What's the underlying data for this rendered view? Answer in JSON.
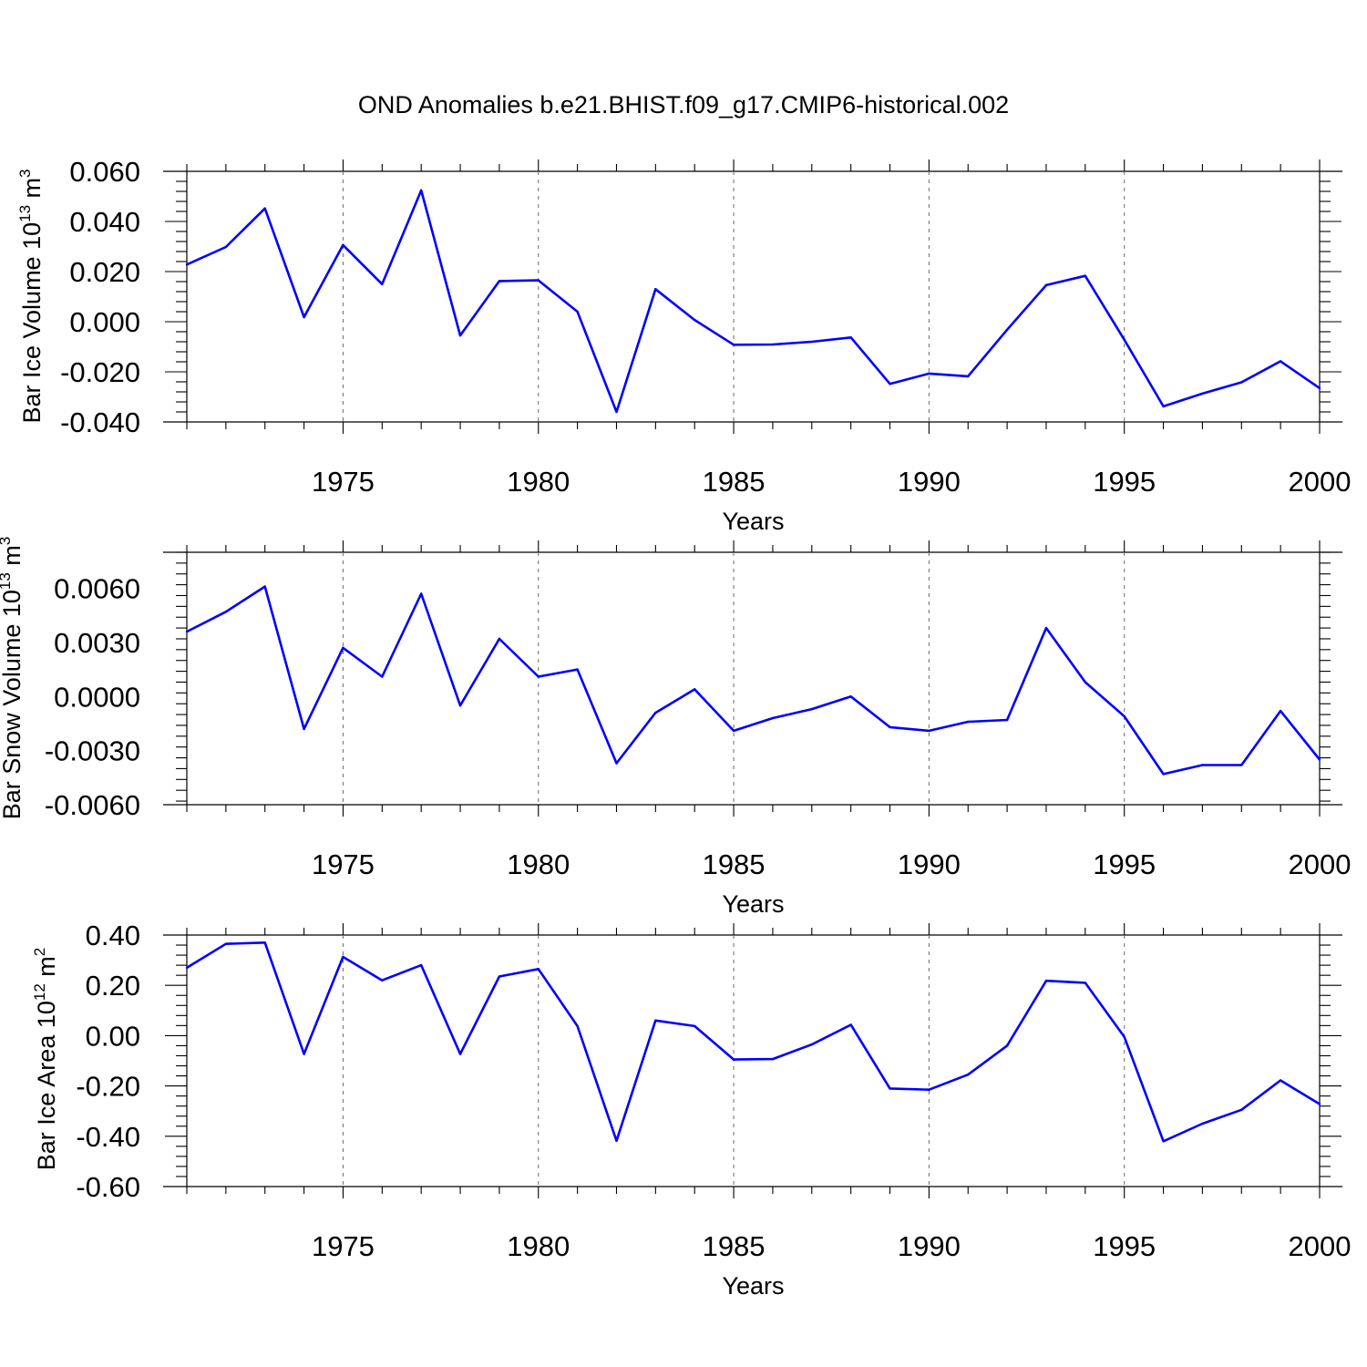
{
  "title": "OND Anomalies b.e21.BHIST.f09_g17.CMIP6-historical.002",
  "colors": {
    "line": "#0000ff",
    "frame": "#000000",
    "grid": "#777777"
  },
  "chart_data": [
    {
      "type": "line",
      "ylabel": "Bar Ice Volume 10",
      "ylabel_exp": "13",
      "ylabel_unit": " m",
      "ylabel_unit_exp": "3",
      "xlabel": "Years",
      "x_ticks": [
        "1975",
        "1980",
        "1985",
        "1990",
        "1995",
        "2000"
      ],
      "y_ticks": [
        "0.060",
        "0.040",
        "0.020",
        "0.000",
        "-0.020",
        "-0.040"
      ],
      "ylim": [
        -0.04,
        0.06
      ],
      "xlim": [
        1971,
        2000
      ],
      "grid": "x-dashed",
      "x": [
        1971,
        1972,
        1973,
        1974,
        1975,
        1976,
        1977,
        1978,
        1979,
        1980,
        1981,
        1982,
        1983,
        1984,
        1985,
        1986,
        1987,
        1988,
        1989,
        1990,
        1991,
        1992,
        1993,
        1994,
        1995,
        1996,
        1997,
        1998,
        1999,
        2000
      ],
      "values": [
        0.0228,
        0.0298,
        0.0452,
        0.0018,
        0.0306,
        0.015,
        0.0524,
        -0.0055,
        0.0162,
        0.0165,
        0.004,
        -0.036,
        0.013,
        0.0007,
        -0.0092,
        -0.0091,
        -0.008,
        -0.0063,
        -0.0248,
        -0.0207,
        -0.0218,
        -0.0032,
        0.0146,
        0.0183,
        -0.0072,
        -0.0338,
        -0.0287,
        -0.0242,
        -0.0158,
        -0.0265
      ]
    },
    {
      "type": "line",
      "ylabel": "Bar Snow Volume 10",
      "ylabel_exp": "13",
      "ylabel_unit": " m",
      "ylabel_unit_exp": "3",
      "xlabel": "Years",
      "x_ticks": [
        "1975",
        "1980",
        "1985",
        "1990",
        "1995",
        "2000"
      ],
      "y_ticks": [
        "0.0060",
        "0.0030",
        "0.0000",
        "-0.0030",
        "-0.0060"
      ],
      "ylim": [
        -0.006,
        0.008
      ],
      "xlim": [
        1971,
        2000
      ],
      "grid": "x-dashed",
      "x": [
        1971,
        1972,
        1973,
        1974,
        1975,
        1976,
        1977,
        1978,
        1979,
        1980,
        1981,
        1982,
        1983,
        1984,
        1985,
        1986,
        1987,
        1988,
        1989,
        1990,
        1991,
        1992,
        1993,
        1994,
        1995,
        1996,
        1997,
        1998,
        1999,
        2000
      ],
      "values": [
        0.0036,
        0.0047,
        0.0061,
        -0.0018,
        0.0027,
        0.0011,
        0.0057,
        -0.0005,
        0.0032,
        0.0011,
        0.0015,
        -0.0037,
        -0.0009,
        0.0004,
        -0.0019,
        -0.0012,
        -0.0007,
        0.0,
        -0.0017,
        -0.0019,
        -0.0014,
        -0.0013,
        0.0038,
        0.0008,
        -0.0011,
        -0.0043,
        -0.0038,
        -0.0038,
        -0.0008,
        -0.0035
      ]
    },
    {
      "type": "line",
      "ylabel": "Bar Ice Area 10",
      "ylabel_exp": "12",
      "ylabel_unit": " m",
      "ylabel_unit_exp": "2",
      "xlabel": "Years",
      "x_ticks": [
        "1975",
        "1980",
        "1985",
        "1990",
        "1995",
        "2000"
      ],
      "y_ticks": [
        "0.40",
        "0.20",
        "0.00",
        "-0.20",
        "-0.40",
        "-0.60"
      ],
      "ylim": [
        -0.6,
        0.4
      ],
      "xlim": [
        1971,
        2000
      ],
      "grid": "x-dashed",
      "x": [
        1971,
        1972,
        1973,
        1974,
        1975,
        1976,
        1977,
        1978,
        1979,
        1980,
        1981,
        1982,
        1983,
        1984,
        1985,
        1986,
        1987,
        1988,
        1989,
        1990,
        1991,
        1992,
        1993,
        1994,
        1995,
        1996,
        1997,
        1998,
        1999,
        2000
      ],
      "values": [
        0.27,
        0.365,
        0.37,
        -0.073,
        0.313,
        0.22,
        0.28,
        -0.073,
        0.235,
        0.265,
        0.038,
        -0.418,
        0.06,
        0.038,
        -0.095,
        -0.093,
        -0.035,
        0.043,
        -0.21,
        -0.215,
        -0.155,
        -0.04,
        0.218,
        0.21,
        -0.005,
        -0.42,
        -0.35,
        -0.295,
        -0.178,
        -0.272
      ]
    }
  ]
}
